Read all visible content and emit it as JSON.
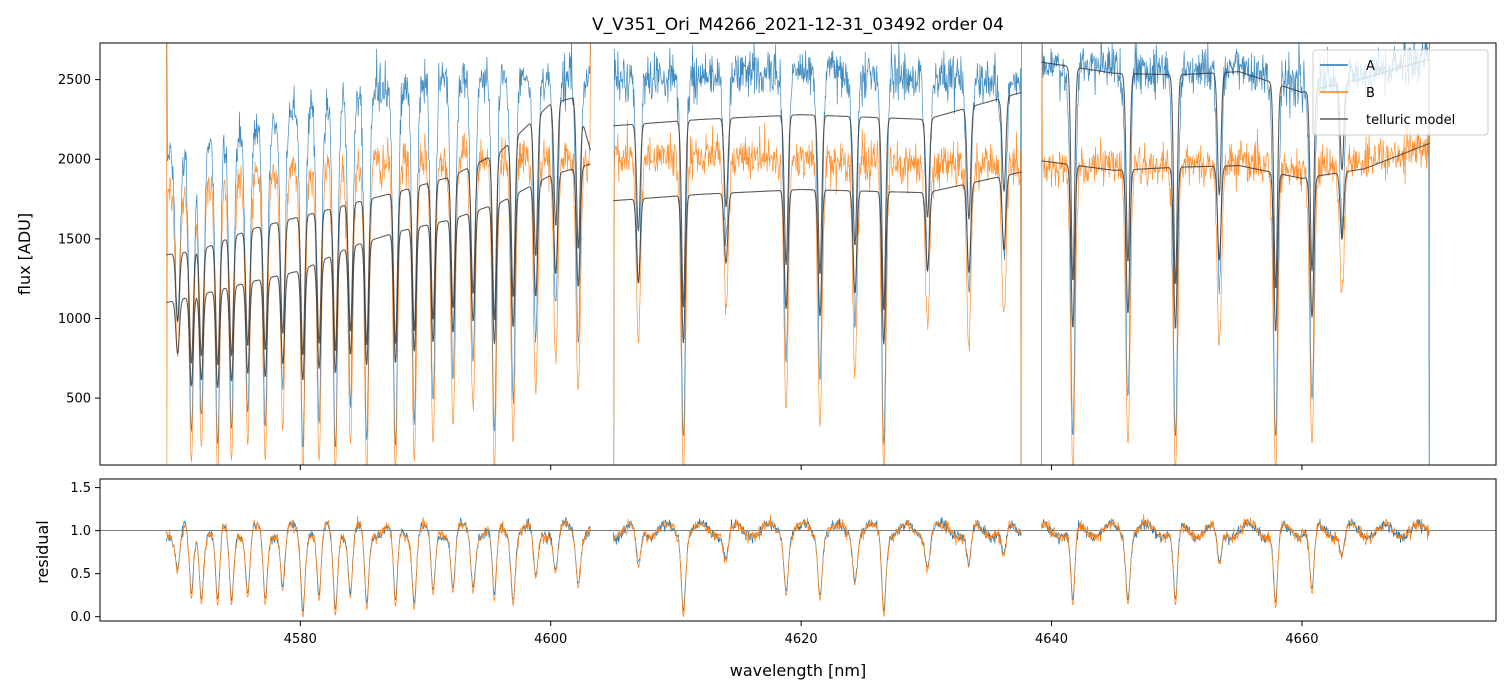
{
  "chart_data": [
    {
      "panel": "top",
      "type": "line",
      "title": "V_V351_Ori_M4266_2021-12-31_03492  order 04",
      "xlabel": "",
      "ylabel": "flux [ADU]",
      "xlim": [
        4564,
        4675.5
      ],
      "ylim": [
        80,
        2730
      ],
      "xticks": [
        4580,
        4600,
        4620,
        4640,
        4660
      ],
      "yticks": [
        500,
        1000,
        1500,
        2000,
        2500
      ],
      "ytick_labels": [
        "500",
        "1000",
        "1500",
        "2000",
        "2500"
      ],
      "legend": {
        "position": "top-right",
        "entries": [
          "A",
          "B",
          "telluric model"
        ]
      },
      "segments": [
        {
          "x_start": 4569.3,
          "x_end": 4603.2
        },
        {
          "x_start": 4605.0,
          "x_end": 4637.6
        },
        {
          "x_start": 4639.2,
          "x_end": 4670.2
        }
      ],
      "series": [
        {
          "name": "A",
          "color": "#1f77b4",
          "continuum_points": [
            [
              4569.3,
              2000
            ],
            [
              4572,
              2050
            ],
            [
              4576,
              2180
            ],
            [
              4580,
              2300
            ],
            [
              4585,
              2400
            ],
            [
              4590,
              2480
            ],
            [
              4595,
              2520
            ],
            [
              4600,
              2530
            ],
            [
              4603.2,
              2500
            ],
            [
              4605.0,
              2500
            ],
            [
              4612,
              2530
            ],
            [
              4620,
              2560
            ],
            [
              4628,
              2520
            ],
            [
              4637.6,
              2480
            ],
            [
              4639.2,
              2560
            ],
            [
              4645,
              2590
            ],
            [
              4650,
              2560
            ],
            [
              4655,
              2580
            ],
            [
              4660,
              2480
            ],
            [
              4665,
              2520
            ],
            [
              4670.2,
              2650
            ]
          ]
        },
        {
          "name": "B",
          "color": "#ff7f0e",
          "continuum_points": [
            [
              4569.3,
              1800
            ],
            [
              4572,
              1810
            ],
            [
              4576,
              1900
            ],
            [
              4580,
              1920
            ],
            [
              4585,
              1960
            ],
            [
              4590,
              2000
            ],
            [
              4595,
              2030
            ],
            [
              4600,
              2010
            ],
            [
              4603.2,
              2020
            ],
            [
              4605.0,
              2000
            ],
            [
              4612,
              2020
            ],
            [
              4620,
              2000
            ],
            [
              4628,
              1970
            ],
            [
              4637.6,
              1960
            ],
            [
              4639.2,
              1960
            ],
            [
              4645,
              1970
            ],
            [
              4650,
              1960
            ],
            [
              4655,
              1990
            ],
            [
              4660,
              1940
            ],
            [
              4665,
              1990
            ],
            [
              4670.2,
              2070
            ]
          ]
        },
        {
          "name": "telluric model A",
          "color": "#333333",
          "continuum_points": [
            [
              4569.3,
              1400
            ],
            [
              4572,
              1430
            ],
            [
              4576,
              1560
            ],
            [
              4580,
              1640
            ],
            [
              4584,
              1720
            ],
            [
              4588,
              1800
            ],
            [
              4592,
              1890
            ],
            [
              4596,
              2050
            ],
            [
              4600,
              2350
            ],
            [
              4602,
              2390
            ],
            [
              4603.2,
              2050
            ],
            [
              4605.0,
              2210
            ],
            [
              4612,
              2250
            ],
            [
              4620,
              2280
            ],
            [
              4630,
              2250
            ],
            [
              4637.6,
              2420
            ],
            [
              4639.2,
              2610
            ],
            [
              4645,
              2540
            ],
            [
              4650,
              2530
            ],
            [
              4655,
              2550
            ],
            [
              4660,
              2420
            ],
            [
              4665,
              2510
            ],
            [
              4670.2,
              2630
            ]
          ]
        },
        {
          "name": "telluric model B",
          "color": "#333333",
          "continuum_points": [
            [
              4569.3,
              1100
            ],
            [
              4572,
              1150
            ],
            [
              4576,
              1230
            ],
            [
              4580,
              1300
            ],
            [
              4584,
              1450
            ],
            [
              4588,
              1550
            ],
            [
              4592,
              1620
            ],
            [
              4596,
              1730
            ],
            [
              4600,
              1900
            ],
            [
              4603.2,
              1970
            ],
            [
              4605.0,
              1740
            ],
            [
              4612,
              1780
            ],
            [
              4620,
              1810
            ],
            [
              4630,
              1790
            ],
            [
              4637.6,
              1920
            ],
            [
              4639.2,
              1990
            ],
            [
              4645,
              1930
            ],
            [
              4650,
              1950
            ],
            [
              4655,
              1960
            ],
            [
              4660,
              1880
            ],
            [
              4665,
              1940
            ],
            [
              4670.2,
              2100
            ]
          ]
        }
      ],
      "absorption_lines": [
        {
          "x": 4570.2,
          "depth": 0.55
        },
        {
          "x": 4571.3,
          "depth": 0.9
        },
        {
          "x": 4572.1,
          "depth": 0.85
        },
        {
          "x": 4573.4,
          "depth": 0.95
        },
        {
          "x": 4574.5,
          "depth": 0.9
        },
        {
          "x": 4575.8,
          "depth": 0.85
        },
        {
          "x": 4577.2,
          "depth": 0.9
        },
        {
          "x": 4578.6,
          "depth": 0.8
        },
        {
          "x": 4580.2,
          "depth": 0.97
        },
        {
          "x": 4581.5,
          "depth": 0.9
        },
        {
          "x": 4582.8,
          "depth": 0.97
        },
        {
          "x": 4584.0,
          "depth": 0.85
        },
        {
          "x": 4585.3,
          "depth": 0.95
        },
        {
          "x": 4587.6,
          "depth": 0.97
        },
        {
          "x": 4589.1,
          "depth": 0.9
        },
        {
          "x": 4590.6,
          "depth": 0.85
        },
        {
          "x": 4592.2,
          "depth": 0.8
        },
        {
          "x": 4593.8,
          "depth": 0.75
        },
        {
          "x": 4595.5,
          "depth": 0.93
        },
        {
          "x": 4597.0,
          "depth": 0.85
        },
        {
          "x": 4598.8,
          "depth": 0.7
        },
        {
          "x": 4600.4,
          "depth": 0.6
        },
        {
          "x": 4602.2,
          "depth": 0.7
        },
        {
          "x": 4607.0,
          "depth": 0.55
        },
        {
          "x": 4610.6,
          "depth": 0.95
        },
        {
          "x": 4614.0,
          "depth": 0.45
        },
        {
          "x": 4618.8,
          "depth": 0.75
        },
        {
          "x": 4621.5,
          "depth": 0.8
        },
        {
          "x": 4624.3,
          "depth": 0.65
        },
        {
          "x": 4626.6,
          "depth": 0.97
        },
        {
          "x": 4630.1,
          "depth": 0.5
        },
        {
          "x": 4633.4,
          "depth": 0.55
        },
        {
          "x": 4636.2,
          "depth": 0.45
        },
        {
          "x": 4641.7,
          "depth": 0.95
        },
        {
          "x": 4646.1,
          "depth": 0.85
        },
        {
          "x": 4649.9,
          "depth": 0.95
        },
        {
          "x": 4653.4,
          "depth": 0.55
        },
        {
          "x": 4657.9,
          "depth": 0.95
        },
        {
          "x": 4660.8,
          "depth": 0.85
        },
        {
          "x": 4663.2,
          "depth": 0.4
        }
      ]
    },
    {
      "panel": "bottom",
      "type": "line",
      "title": "",
      "xlabel": "wavelength [nm]",
      "ylabel": "residual",
      "xlim": [
        4564,
        4675.5
      ],
      "ylim": [
        -0.05,
        1.6
      ],
      "xticks": [
        4580,
        4600,
        4620,
        4640,
        4660
      ],
      "xtick_labels": [
        "4580",
        "4600",
        "4620",
        "4640",
        "4660"
      ],
      "yticks": [
        0.0,
        0.5,
        1.0,
        1.5
      ],
      "ytick_labels": [
        "0.0",
        "0.5",
        "1.0",
        "1.5"
      ],
      "reference_line": 1.0,
      "series": [
        {
          "name": "A",
          "color": "#1f77b4",
          "baseline": 1.0
        },
        {
          "name": "B",
          "color": "#ff7f0e",
          "baseline": 1.0
        }
      ]
    }
  ]
}
